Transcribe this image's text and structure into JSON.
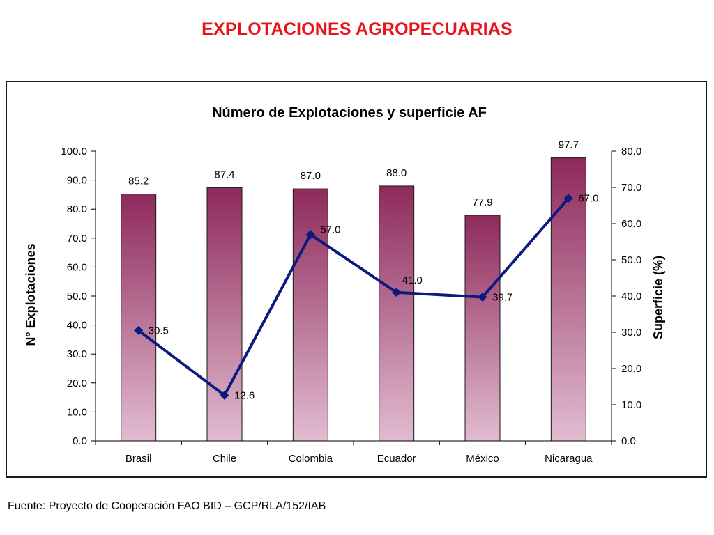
{
  "slide": {
    "title": "EXPLOTACIONES AGROPECUARIAS",
    "source": "Fuente: Proyecto de Cooperación FAO BID – GCP/RLA/152/IAB"
  },
  "chart_data": {
    "type": "bar",
    "title": "Número de Explotaciones y superficie AF",
    "categories": [
      "Brasil",
      "Chile",
      "Colombia",
      "Ecuador",
      "México",
      "Nicaragua"
    ],
    "ylabel": "N° Explotaciones",
    "y2label": "Superficie (%)",
    "ylim": [
      0,
      100
    ],
    "y2lim": [
      0,
      80
    ],
    "yticks": [
      "0.0",
      "10.0",
      "20.0",
      "30.0",
      "40.0",
      "50.0",
      "60.0",
      "70.0",
      "80.0",
      "90.0",
      "100.0"
    ],
    "y2ticks": [
      "0.0",
      "10.0",
      "20.0",
      "30.0",
      "40.0",
      "50.0",
      "60.0",
      "70.0",
      "80.0"
    ],
    "grid": false,
    "series": [
      {
        "type": "bar",
        "axis": "left",
        "values": [
          85.2,
          87.4,
          87.0,
          88.0,
          77.9,
          97.7
        ],
        "labels": [
          "85.2",
          "87.4",
          "87.0",
          "88.0",
          "77.9",
          "97.7"
        ],
        "color_top": "#8e2a5c",
        "color_bottom": "#e2bcd0"
      },
      {
        "type": "line",
        "axis": "right",
        "values": [
          30.5,
          12.6,
          57.0,
          41.0,
          39.7,
          67.0
        ],
        "labels": [
          "30.5",
          "12.6",
          "57.0",
          "41.0",
          "39.7",
          "67.0"
        ],
        "color": "#0c1a80",
        "marker": "diamond"
      }
    ]
  }
}
